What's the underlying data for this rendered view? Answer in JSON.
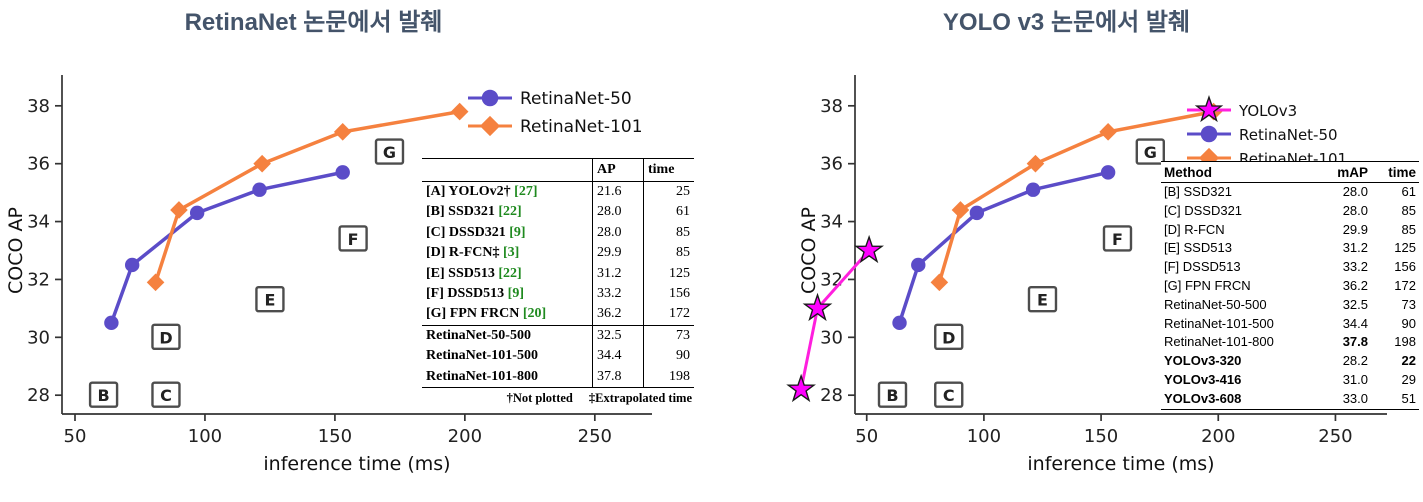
{
  "page": {
    "background": "#ffffff"
  },
  "panels": [
    {
      "title": "RetinaNet 논문에서 발췌",
      "title_color": "#44546A"
    },
    {
      "title": "YOLO v3 논문에서 발췌",
      "title_color": "#44546A"
    }
  ],
  "chart_data": [
    {
      "type": "line",
      "title": "RetinaNet 논문에서 발췌",
      "xlabel": "inference time (ms)",
      "ylabel": "COCO AP",
      "xlim": [
        45,
        272
      ],
      "ylim": [
        27.35,
        38.65
      ],
      "xticks": [
        50,
        100,
        150,
        200,
        250
      ],
      "yticks": [
        28,
        30,
        32,
        34,
        36,
        38
      ],
      "grid": false,
      "legend_position": "upper right inside",
      "series": [
        {
          "name": "RetinaNet-50",
          "color": "#5b4cc8",
          "marker": "circle",
          "points": [
            [
              64,
              30.5
            ],
            [
              72,
              32.5
            ],
            [
              97,
              34.3
            ],
            [
              121,
              35.1
            ],
            [
              153,
              35.7
            ]
          ]
        },
        {
          "name": "RetinaNet-101",
          "color": "#f5813f",
          "marker": "diamond",
          "points": [
            [
              81,
              31.9
            ],
            [
              90,
              34.4
            ],
            [
              122,
              36.0
            ],
            [
              153,
              37.1
            ],
            [
              198,
              37.8
            ]
          ]
        }
      ],
      "annotations": [
        {
          "label": "B",
          "x": 61,
          "y": 28.0
        },
        {
          "label": "C",
          "x": 85,
          "y": 28.0
        },
        {
          "label": "D",
          "x": 85,
          "y": 30.0
        },
        {
          "label": "E",
          "x": 125,
          "y": 31.3
        },
        {
          "label": "F",
          "x": 157,
          "y": 33.4
        },
        {
          "label": "G",
          "x": 171,
          "y": 36.4
        }
      ],
      "inset_table": {
        "headers": [
          "",
          "AP",
          "time"
        ],
        "rows": [
          {
            "method": "[A] YOLOv2†",
            "cite": "[27]",
            "ap": "21.6",
            "time": "25"
          },
          {
            "method": "[B] SSD321",
            "cite": "[22]",
            "ap": "28.0",
            "time": "61"
          },
          {
            "method": "[C] DSSD321",
            "cite": "[9]",
            "ap": "28.0",
            "time": "85"
          },
          {
            "method": "[D] R-FCN‡",
            "cite": "[3]",
            "ap": "29.9",
            "time": "85"
          },
          {
            "method": "[E] SSD513",
            "cite": "[22]",
            "ap": "31.2",
            "time": "125"
          },
          {
            "method": "[F] DSSD513",
            "cite": "[9]",
            "ap": "33.2",
            "time": "156"
          },
          {
            "method": "[G] FPN FRCN",
            "cite": "[20]",
            "ap": "36.2",
            "time": "172"
          },
          {
            "method": "RetinaNet-50-500",
            "cite": "",
            "ap": "32.5",
            "time": "73",
            "sep_above": true
          },
          {
            "method": "RetinaNet-101-500",
            "cite": "",
            "ap": "34.4",
            "time": "90"
          },
          {
            "method": "RetinaNet-101-800",
            "cite": "",
            "ap": "37.8",
            "time": "198"
          }
        ],
        "footnotes": [
          "†Not plotted",
          "‡Extrapolated time"
        ]
      }
    },
    {
      "type": "line",
      "title": "YOLO v3 논문에서 발췌",
      "xlabel": "inference time (ms)",
      "ylabel": "COCO AP",
      "xlim": [
        45,
        272
      ],
      "ylim": [
        27.35,
        38.65
      ],
      "xticks": [
        50,
        100,
        150,
        200,
        250
      ],
      "yticks": [
        28,
        30,
        32,
        34,
        36,
        38
      ],
      "grid": false,
      "legend_position": "upper right inside",
      "series": [
        {
          "name": "YOLOv3",
          "color": "#ff1fde",
          "marker": "star",
          "points": [
            [
              22,
              28.2
            ],
            [
              29,
              31.0
            ],
            [
              51,
              33.0
            ]
          ]
        },
        {
          "name": "RetinaNet-50",
          "color": "#5b4cc8",
          "marker": "circle",
          "points": [
            [
              64,
              30.5
            ],
            [
              72,
              32.5
            ],
            [
              97,
              34.3
            ],
            [
              121,
              35.1
            ],
            [
              153,
              35.7
            ]
          ]
        },
        {
          "name": "RetinaNet-101",
          "color": "#f5813f",
          "marker": "diamond",
          "points": [
            [
              81,
              31.9
            ],
            [
              90,
              34.4
            ],
            [
              122,
              36.0
            ],
            [
              153,
              37.1
            ],
            [
              198,
              37.8
            ]
          ]
        }
      ],
      "annotations": [
        {
          "label": "B",
          "x": 61,
          "y": 28.0
        },
        {
          "label": "C",
          "x": 85,
          "y": 28.0
        },
        {
          "label": "D",
          "x": 85,
          "y": 30.0
        },
        {
          "label": "E",
          "x": 125,
          "y": 31.3
        },
        {
          "label": "F",
          "x": 157,
          "y": 33.4
        },
        {
          "label": "G",
          "x": 171,
          "y": 36.4
        }
      ],
      "inset_table": {
        "headers": [
          "Method",
          "mAP",
          "time"
        ],
        "rows": [
          {
            "method": "[B] SSD321",
            "map": "28.0",
            "time": "61"
          },
          {
            "method": "[C] DSSD321",
            "map": "28.0",
            "time": "85"
          },
          {
            "method": "[D] R-FCN",
            "map": "29.9",
            "time": "85"
          },
          {
            "method": "[E] SSD513",
            "map": "31.2",
            "time": "125"
          },
          {
            "method": "[F] DSSD513",
            "map": "33.2",
            "time": "156"
          },
          {
            "method": "[G] FPN FRCN",
            "map": "36.2",
            "time": "172"
          },
          {
            "method": "RetinaNet-50-500",
            "map": "32.5",
            "time": "73"
          },
          {
            "method": "RetinaNet-101-500",
            "map": "34.4",
            "time": "90"
          },
          {
            "method": "RetinaNet-101-800",
            "map": "37.8",
            "time": "198",
            "bold_map": true
          },
          {
            "method": "YOLOv3-320",
            "map": "28.2",
            "time": "22",
            "bold_method": true,
            "bold_time": true
          },
          {
            "method": "YOLOv3-416",
            "map": "31.0",
            "time": "29",
            "bold_method": true
          },
          {
            "method": "YOLOv3-608",
            "map": "33.0",
            "time": "51",
            "bold_method": true
          }
        ]
      }
    }
  ]
}
